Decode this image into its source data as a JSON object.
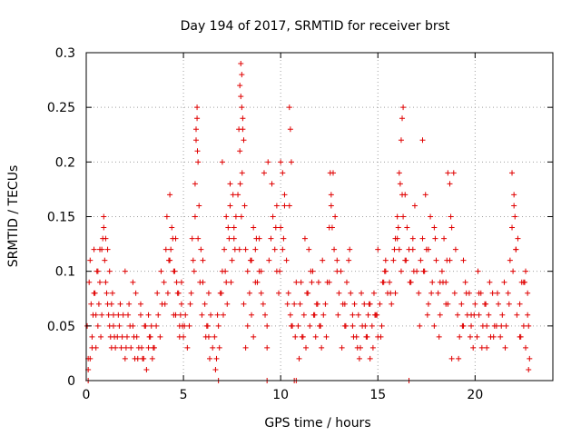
{
  "chart_data": {
    "type": "scatter",
    "title": "Day 194 of 2017, SRMTID for receiver brst",
    "xlabel": "GPS time / hours",
    "ylabel": "SRMTID / TECUs",
    "xlim": [
      0,
      24
    ],
    "ylim": [
      0,
      0.3
    ],
    "xticks": [
      0,
      5,
      10,
      15,
      20
    ],
    "xtick_labels": [
      "0",
      "5",
      "10",
      "15",
      "20"
    ],
    "yticks": [
      0,
      0.05,
      0.1,
      0.15,
      0.2,
      0.25,
      0.3
    ],
    "ytick_labels": [
      "0",
      "0.05",
      "0.1",
      "0.15",
      "0.2",
      "0.25",
      "0.3"
    ],
    "grid": true,
    "marker": "+",
    "color": "#e00000",
    "series": [
      {
        "name": "SRMTID",
        "x": [
          0.05,
          0.1,
          0.15,
          0.2,
          0.25,
          0.3,
          0.35,
          0.4,
          0.45,
          0.5,
          0.55,
          0.6,
          0.65,
          0.7,
          0.75,
          0.8,
          0.85,
          0.9,
          0.95,
          1.0,
          1.05,
          1.1,
          1.15,
          1.2,
          1.25,
          1.3,
          1.35,
          1.4,
          1.45,
          1.5,
          0.1,
          0.3,
          0.5,
          0.7,
          0.9,
          1.1,
          1.3,
          0.2,
          0.6,
          1.0,
          1.4,
          0.4,
          0.8,
          1.2,
          1.6,
          1.7,
          1.8,
          1.9,
          2.0,
          2.1,
          2.2,
          2.3,
          2.4,
          2.5,
          2.6,
          2.7,
          2.8,
          2.9,
          3.0,
          3.1,
          3.2,
          3.3,
          3.4,
          3.5,
          1.65,
          1.85,
          2.05,
          2.25,
          2.45,
          2.65,
          2.85,
          3.05,
          3.25,
          3.45,
          1.75,
          2.15,
          2.55,
          2.95,
          3.35,
          2.0,
          2.4,
          2.8,
          3.2,
          3.6,
          3.7,
          3.8,
          3.9,
          4.0,
          4.1,
          4.2,
          4.3,
          4.4,
          4.5,
          4.6,
          4.7,
          4.8,
          4.9,
          5.0,
          5.1,
          5.2,
          3.65,
          3.85,
          4.05,
          4.25,
          4.45,
          4.65,
          4.85,
          5.05,
          4.15,
          4.35,
          4.55,
          4.75,
          4.95,
          4.3,
          4.6,
          4.9,
          4.5,
          4.8,
          5.3,
          5.4,
          5.5,
          5.6,
          5.65,
          5.7,
          5.75,
          5.8,
          5.9,
          6.0,
          6.1,
          6.2,
          6.3,
          6.4,
          6.5,
          5.35,
          5.55,
          5.75,
          5.95,
          6.15,
          6.35,
          5.6,
          5.7,
          5.65,
          5.72,
          6.0,
          6.3,
          5.45,
          5.85,
          6.25,
          6.6,
          6.7,
          6.8,
          6.9,
          7.0,
          7.1,
          7.2,
          7.3,
          7.4,
          7.5,
          7.6,
          7.7,
          6.65,
          6.85,
          7.05,
          7.25,
          7.45,
          7.65,
          6.75,
          6.95,
          7.15,
          7.35,
          7.55,
          7.0,
          7.4,
          7.6,
          7.2,
          7.8,
          7.85,
          7.9,
          7.95,
          8.0,
          8.05,
          8.1,
          8.15,
          8.2,
          8.3,
          8.4,
          8.5,
          8.6,
          8.7,
          8.8,
          8.9,
          9.0,
          7.9,
          7.95,
          8.0,
          8.05,
          7.88,
          7.92,
          7.98,
          8.02,
          8.1,
          8.3,
          8.5,
          8.7,
          8.9,
          8.2,
          8.6,
          9.0,
          8.45,
          8.75,
          9.1,
          9.2,
          9.3,
          9.4,
          9.5,
          9.6,
          9.7,
          9.8,
          9.9,
          10.0,
          10.1,
          10.2,
          10.3,
          10.4,
          10.5,
          10.6,
          10.7,
          10.8,
          9.15,
          9.35,
          9.55,
          9.75,
          9.95,
          10.15,
          10.35,
          10.55,
          10.75,
          9.3,
          9.8,
          10.0,
          10.1,
          10.2,
          10.45,
          10.5,
          10.55,
          10.45,
          10.9,
          11.0,
          11.1,
          11.2,
          11.3,
          11.4,
          11.5,
          11.6,
          11.7,
          11.8,
          11.9,
          12.0,
          12.1,
          12.2,
          10.95,
          11.15,
          11.35,
          11.55,
          11.75,
          11.95,
          12.15,
          11.05,
          11.45,
          11.85,
          11.25,
          11.65,
          12.05,
          12.3,
          12.4,
          12.5,
          12.6,
          12.7,
          12.8,
          12.9,
          13.0,
          13.1,
          13.2,
          13.3,
          13.4,
          13.5,
          13.6,
          13.7,
          13.8,
          12.55,
          12.6,
          12.65,
          12.35,
          12.75,
          12.95,
          13.15,
          13.35,
          13.55,
          13.75,
          12.5,
          12.9,
          13.3,
          13.7,
          13.9,
          14.0,
          14.1,
          14.2,
          14.3,
          14.4,
          14.5,
          14.6,
          14.7,
          14.8,
          14.9,
          15.0,
          15.1,
          15.2,
          15.3,
          15.4,
          15.5,
          13.95,
          14.15,
          14.35,
          14.55,
          14.75,
          14.95,
          15.15,
          15.35,
          14.05,
          14.45,
          14.85,
          15.25,
          14.6,
          15.0,
          15.4,
          15.6,
          15.7,
          15.8,
          15.9,
          16.0,
          16.1,
          16.2,
          16.3,
          16.4,
          16.5,
          16.6,
          16.7,
          16.8,
          16.9,
          17.0,
          15.65,
          15.85,
          16.05,
          16.25,
          16.45,
          16.65,
          16.85,
          16.1,
          16.2,
          16.25,
          16.3,
          16.0,
          16.15,
          15.9,
          16.4,
          16.8,
          17.1,
          17.2,
          17.3,
          17.4,
          17.5,
          17.6,
          17.7,
          17.8,
          17.9,
          18.0,
          18.1,
          18.2,
          18.3,
          18.4,
          18.5,
          18.6,
          18.7,
          18.8,
          18.9,
          19.0,
          17.15,
          17.35,
          17.55,
          17.75,
          17.95,
          18.15,
          18.35,
          18.55,
          18.75,
          18.95,
          17.3,
          17.45,
          18.6,
          18.7,
          17.6,
          17.9,
          18.2,
          18.5,
          18.8,
          19.1,
          19.2,
          19.3,
          19.4,
          19.5,
          19.6,
          19.7,
          19.8,
          19.9,
          20.0,
          20.1,
          20.2,
          20.3,
          20.4,
          20.5,
          20.6,
          20.7,
          20.8,
          20.9,
          21.0,
          19.15,
          19.35,
          19.55,
          19.75,
          19.95,
          20.15,
          20.35,
          20.55,
          20.75,
          20.95,
          19.4,
          19.8,
          20.2,
          20.6,
          21.1,
          21.2,
          21.3,
          21.4,
          21.5,
          21.6,
          21.7,
          21.8,
          21.9,
          22.0,
          22.1,
          22.2,
          22.3,
          22.4,
          22.5,
          22.6,
          22.7,
          22.8,
          21.15,
          21.35,
          21.55,
          21.75,
          21.95,
          22.15,
          22.35,
          22.55,
          22.75,
          21.9,
          22.0,
          22.05,
          22.1,
          22.6,
          22.7,
          22.75,
          22.3,
          22.5,
          9.3,
          10.7,
          10.8,
          16.6,
          0.1,
          6.8
        ],
        "y": [
          0.05,
          0.02,
          0.09,
          0.11,
          0.07,
          0.04,
          0.06,
          0.12,
          0.08,
          0.03,
          0.1,
          0.05,
          0.07,
          0.12,
          0.04,
          0.06,
          0.13,
          0.15,
          0.11,
          0.09,
          0.08,
          0.07,
          0.06,
          0.05,
          0.04,
          0.03,
          0.08,
          0.05,
          0.04,
          0.03,
          0.01,
          0.03,
          0.06,
          0.09,
          0.14,
          0.12,
          0.07,
          0.02,
          0.1,
          0.13,
          0.06,
          0.08,
          0.12,
          0.1,
          0.04,
          0.05,
          0.03,
          0.06,
          0.02,
          0.04,
          0.07,
          0.03,
          0.05,
          0.02,
          0.04,
          0.03,
          0.06,
          0.02,
          0.05,
          0.01,
          0.03,
          0.04,
          0.02,
          0.03,
          0.06,
          0.04,
          0.03,
          0.05,
          0.04,
          0.02,
          0.03,
          0.05,
          0.04,
          0.03,
          0.07,
          0.06,
          0.08,
          0.02,
          0.05,
          0.1,
          0.09,
          0.07,
          0.06,
          0.05,
          0.06,
          0.04,
          0.07,
          0.09,
          0.12,
          0.08,
          0.11,
          0.14,
          0.1,
          0.06,
          0.08,
          0.05,
          0.07,
          0.04,
          0.06,
          0.03,
          0.08,
          0.1,
          0.07,
          0.11,
          0.13,
          0.09,
          0.06,
          0.05,
          0.15,
          0.12,
          0.1,
          0.08,
          0.05,
          0.17,
          0.13,
          0.09,
          0.06,
          0.04,
          0.05,
          0.08,
          0.11,
          0.15,
          0.22,
          0.24,
          0.2,
          0.16,
          0.12,
          0.09,
          0.07,
          0.05,
          0.04,
          0.06,
          0.03,
          0.07,
          0.1,
          0.13,
          0.06,
          0.04,
          0.02,
          0.18,
          0.25,
          0.23,
          0.21,
          0.11,
          0.08,
          0.13,
          0.09,
          0.05,
          0.04,
          0.02,
          0.05,
          0.08,
          0.1,
          0.12,
          0.09,
          0.14,
          0.16,
          0.11,
          0.13,
          0.15,
          0.01,
          0.03,
          0.06,
          0.07,
          0.09,
          0.12,
          0.06,
          0.08,
          0.1,
          0.13,
          0.17,
          0.2,
          0.18,
          0.14,
          0.15,
          0.17,
          0.23,
          0.27,
          0.29,
          0.28,
          0.24,
          0.22,
          0.16,
          0.12,
          0.1,
          0.08,
          0.11,
          0.14,
          0.12,
          0.09,
          0.13,
          0.1,
          0.21,
          0.26,
          0.25,
          0.23,
          0.12,
          0.18,
          0.15,
          0.19,
          0.07,
          0.05,
          0.06,
          0.09,
          0.1,
          0.03,
          0.04,
          0.08,
          0.11,
          0.13,
          0.07,
          0.06,
          0.05,
          0.11,
          0.13,
          0.15,
          0.12,
          0.1,
          0.08,
          0.14,
          0.12,
          0.16,
          0.11,
          0.08,
          0.06,
          0.05,
          0.07,
          0.09,
          0.19,
          0.2,
          0.18,
          0.14,
          0.1,
          0.13,
          0.07,
          0.05,
          0.04,
          0.03,
          0.16,
          0.2,
          0.19,
          0.17,
          0.25,
          0.23,
          0.2,
          0.16,
          0.05,
          0.07,
          0.04,
          0.06,
          0.03,
          0.08,
          0.05,
          0.09,
          0.06,
          0.04,
          0.07,
          0.05,
          0.03,
          0.06,
          0.02,
          0.04,
          0.08,
          0.1,
          0.06,
          0.09,
          0.11,
          0.09,
          0.12,
          0.07,
          0.13,
          0.1,
          0.05,
          0.07,
          0.09,
          0.14,
          0.17,
          0.19,
          0.15,
          0.11,
          0.08,
          0.1,
          0.07,
          0.05,
          0.09,
          0.11,
          0.08,
          0.06,
          0.07,
          0.19,
          0.16,
          0.14,
          0.04,
          0.12,
          0.06,
          0.03,
          0.05,
          0.12,
          0.04,
          0.09,
          0.1,
          0.07,
          0.05,
          0.04,
          0.06,
          0.03,
          0.05,
          0.07,
          0.04,
          0.06,
          0.02,
          0.05,
          0.08,
          0.06,
          0.04,
          0.07,
          0.05,
          0.09,
          0.11,
          0.08,
          0.03,
          0.08,
          0.05,
          0.07,
          0.03,
          0.06,
          0.04,
          0.1,
          0.02,
          0.04,
          0.06,
          0.09,
          0.07,
          0.12,
          0.1,
          0.09,
          0.07,
          0.11,
          0.08,
          0.13,
          0.12,
          0.1,
          0.15,
          0.11,
          0.14,
          0.12,
          0.09,
          0.13,
          0.16,
          0.1,
          0.08,
          0.12,
          0.14,
          0.17,
          0.11,
          0.09,
          0.1,
          0.19,
          0.22,
          0.24,
          0.25,
          0.15,
          0.18,
          0.13,
          0.17,
          0.12,
          0.08,
          0.11,
          0.13,
          0.1,
          0.12,
          0.07,
          0.15,
          0.09,
          0.14,
          0.11,
          0.08,
          0.06,
          0.1,
          0.13,
          0.09,
          0.07,
          0.11,
          0.14,
          0.19,
          0.12,
          0.05,
          0.1,
          0.06,
          0.08,
          0.13,
          0.04,
          0.09,
          0.11,
          0.15,
          0.08,
          0.22,
          0.17,
          0.19,
          0.18,
          0.12,
          0.05,
          0.09,
          0.07,
          0.02,
          0.06,
          0.04,
          0.07,
          0.05,
          0.09,
          0.06,
          0.08,
          0.05,
          0.03,
          0.07,
          0.04,
          0.06,
          0.08,
          0.05,
          0.07,
          0.03,
          0.06,
          0.04,
          0.08,
          0.05,
          0.02,
          0.05,
          0.08,
          0.04,
          0.06,
          0.1,
          0.03,
          0.07,
          0.09,
          0.04,
          0.11,
          0.06,
          0.08,
          0.05,
          0.05,
          0.07,
          0.04,
          0.06,
          0.09,
          0.05,
          0.08,
          0.11,
          0.14,
          0.16,
          0.12,
          0.13,
          0.07,
          0.09,
          0.05,
          0.03,
          0.06,
          0.02,
          0.08,
          0.05,
          0.03,
          0.07,
          0.1,
          0.06,
          0.04,
          0.09,
          0.01,
          0.19,
          0.17,
          0.15,
          0.12,
          0.1,
          0.08,
          0.05,
          0.04,
          0.09,
          0.0,
          0.0,
          0.0,
          0.0,
          0.0,
          0.0
        ]
      }
    ]
  }
}
